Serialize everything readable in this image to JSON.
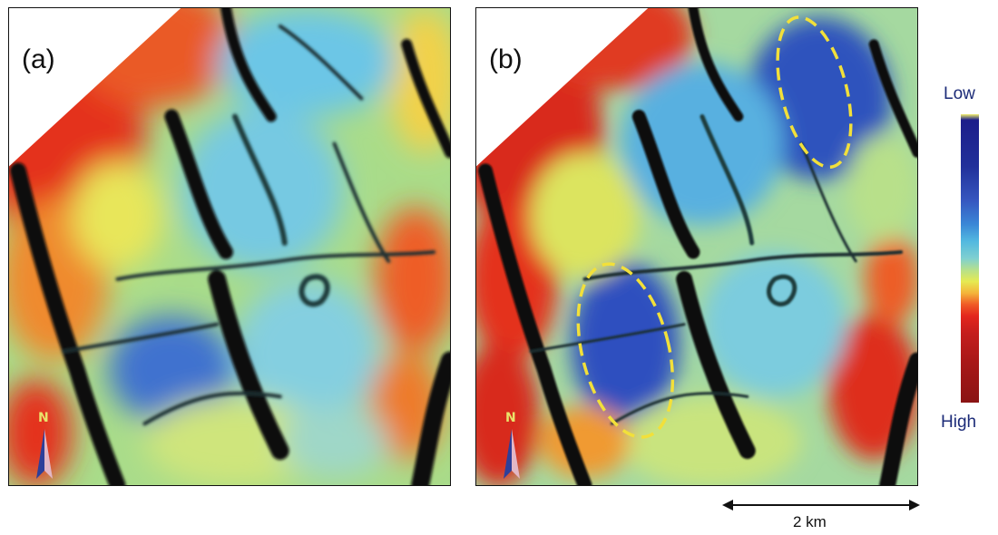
{
  "figure": {
    "panels": [
      {
        "label": "(a)",
        "north_label": "N"
      },
      {
        "label": "(b)",
        "north_label": "N"
      }
    ],
    "colorbar": {
      "low_label": "Low",
      "high_label": "High",
      "colors": [
        "#1c1d8a",
        "#3657c0",
        "#52b8e0",
        "#b6e08c",
        "#e6ea52",
        "#f05a26",
        "#c41d1d",
        "#8a1414"
      ]
    },
    "scale_label": "2 km",
    "highlight_color": "#f2e03a"
  }
}
